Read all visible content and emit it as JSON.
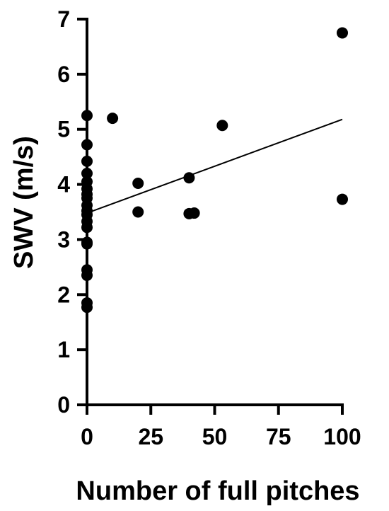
{
  "chart_data": {
    "type": "scatter",
    "title": "",
    "xlabel": "Number of full pitches",
    "ylabel": "SWV (m/s)",
    "xlim": [
      0,
      100
    ],
    "ylim": [
      0,
      7
    ],
    "xticks": [
      0,
      25,
      50,
      75,
      100
    ],
    "yticks": [
      0,
      1,
      2,
      3,
      4,
      5,
      6,
      7
    ],
    "grid": false,
    "points": [
      {
        "x": 0,
        "y": 5.25
      },
      {
        "x": 0,
        "y": 4.72
      },
      {
        "x": 0,
        "y": 4.42
      },
      {
        "x": 0,
        "y": 4.2
      },
      {
        "x": 0,
        "y": 4.05
      },
      {
        "x": 0,
        "y": 3.92
      },
      {
        "x": 0,
        "y": 3.82
      },
      {
        "x": 0,
        "y": 3.75
      },
      {
        "x": 0,
        "y": 3.62
      },
      {
        "x": 0,
        "y": 3.52
      },
      {
        "x": 0,
        "y": 3.45
      },
      {
        "x": 0,
        "y": 3.33
      },
      {
        "x": 0,
        "y": 3.22
      },
      {
        "x": 0,
        "y": 2.95
      },
      {
        "x": 0,
        "y": 2.92
      },
      {
        "x": 0,
        "y": 2.45
      },
      {
        "x": 0,
        "y": 2.35
      },
      {
        "x": 0,
        "y": 1.85
      },
      {
        "x": 0,
        "y": 1.77
      },
      {
        "x": 10,
        "y": 5.2
      },
      {
        "x": 20,
        "y": 4.02
      },
      {
        "x": 20,
        "y": 3.5
      },
      {
        "x": 40,
        "y": 4.12
      },
      {
        "x": 40,
        "y": 3.47
      },
      {
        "x": 42,
        "y": 3.48
      },
      {
        "x": 53,
        "y": 5.07
      },
      {
        "x": 100,
        "y": 6.75
      },
      {
        "x": 100,
        "y": 3.73
      }
    ],
    "trendline": {
      "x": [
        0,
        100
      ],
      "y": [
        3.48,
        5.18
      ]
    }
  }
}
